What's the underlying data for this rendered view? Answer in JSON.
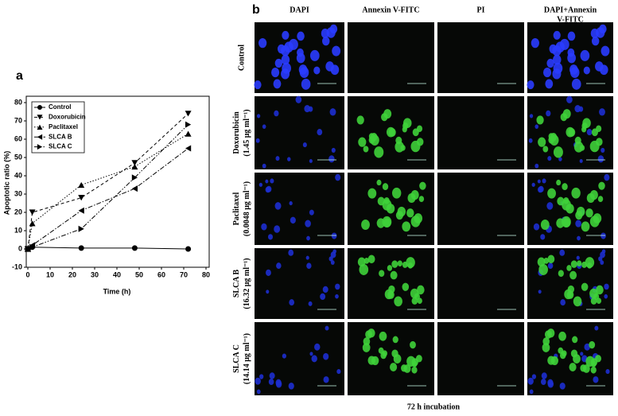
{
  "chart_data": {
    "type": "line",
    "panel_label": "a",
    "x_label": "Time (h)",
    "y_label": "Apoptotic ratio (%)",
    "x": [
      0,
      2,
      24,
      48,
      72
    ],
    "series": [
      {
        "name": "Control",
        "color": "#000000",
        "marker": "circle",
        "dash": "none",
        "values": [
          0,
          1,
          0.5,
          0.5,
          0
        ]
      },
      {
        "name": "Doxorubicin",
        "color": "#000000",
        "marker": "down",
        "dash": "4,3",
        "values": [
          0,
          20,
          28,
          47,
          74
        ]
      },
      {
        "name": "Paclitaxel",
        "color": "#000000",
        "marker": "up",
        "dash": "1.5,2",
        "values": [
          0,
          14,
          35,
          45,
          63
        ]
      },
      {
        "name": "SLCA B",
        "color": "#000000",
        "marker": "left",
        "dash": "6,2,1.5,2",
        "values": [
          0,
          2,
          21,
          33,
          55
        ]
      },
      {
        "name": "SLCA C",
        "color": "#000000",
        "marker": "right",
        "dash": "6,2,1.5,2,1.5,2",
        "values": [
          0,
          1,
          11,
          39,
          68
        ]
      }
    ],
    "xlim": [
      0,
      80
    ],
    "xticks": [
      0,
      10,
      20,
      30,
      40,
      50,
      60,
      70,
      80
    ],
    "ylim": [
      -10,
      80
    ],
    "yticks": [
      -10,
      0,
      10,
      20,
      30,
      40,
      50,
      60,
      70,
      80
    ],
    "legend": "upper-left",
    "grid": false
  },
  "panel_b": {
    "label": "b",
    "columns": [
      [
        "DAPI"
      ],
      [
        "Annexin V-FITC"
      ],
      [
        "PI"
      ],
      [
        "DAPI+Annexin",
        "V-FITC"
      ]
    ],
    "rows": [
      [
        "Control"
      ],
      [
        "Doxorubicin",
        "(1.45 μg ml⁻¹)"
      ],
      [
        "Paclitaxel",
        "(0.0048 μg ml⁻¹)"
      ],
      [
        "SLCA  B",
        "(16.32 μg ml⁻¹)"
      ],
      [
        "SLCA  C",
        "(14.14 μg ml⁻¹)"
      ]
    ],
    "footer": "72 h incubation"
  }
}
